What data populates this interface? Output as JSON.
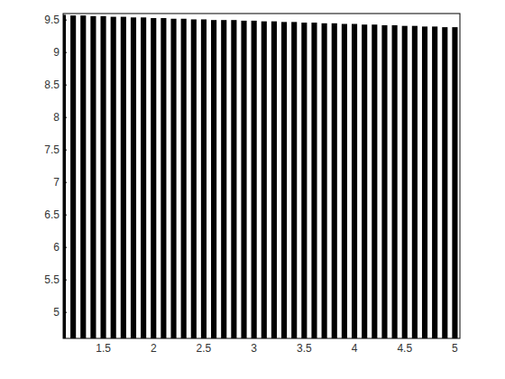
{
  "chart_data": {
    "type": "bar",
    "color": "#000000",
    "x": [
      1.1,
      1.2,
      1.3,
      1.4,
      1.5,
      1.6,
      1.7,
      1.8,
      1.9,
      2.0,
      2.1,
      2.2,
      2.3,
      2.4,
      2.5,
      2.6,
      2.7,
      2.8,
      2.9,
      3.0,
      3.1,
      3.2,
      3.3,
      3.4,
      3.5,
      3.6,
      3.7,
      3.8,
      3.9,
      4.0,
      4.1,
      4.2,
      4.3,
      4.4,
      4.5,
      4.6,
      4.7,
      4.8,
      4.9,
      5.0
    ],
    "values": [
      9.58,
      9.57,
      9.57,
      9.56,
      9.56,
      9.55,
      9.55,
      9.54,
      9.54,
      9.53,
      9.53,
      9.52,
      9.52,
      9.51,
      9.51,
      9.5,
      9.5,
      9.5,
      9.49,
      9.49,
      9.48,
      9.48,
      9.47,
      9.47,
      9.46,
      9.46,
      9.45,
      9.45,
      9.44,
      9.44,
      9.43,
      9.43,
      9.42,
      9.42,
      9.41,
      9.41,
      9.4,
      9.4,
      9.39,
      9.39
    ],
    "xlim": [
      1.1,
      5.05
    ],
    "ylim": [
      4.6,
      9.6
    ],
    "xticks": [
      1.5,
      2,
      2.5,
      3,
      3.5,
      4,
      4.5,
      5
    ],
    "yticks": [
      5,
      5.5,
      6,
      6.5,
      7,
      7.5,
      8,
      8.5,
      9,
      9.5
    ],
    "grid": false
  }
}
